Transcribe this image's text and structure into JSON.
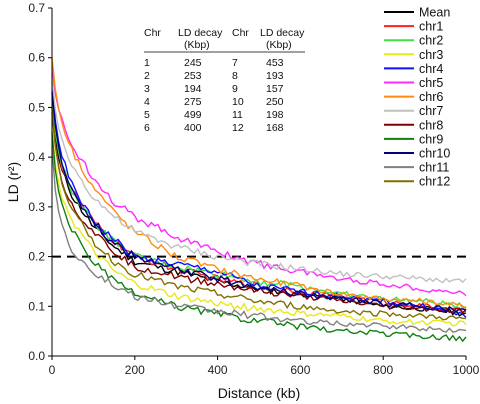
{
  "chart_data": {
    "type": "line",
    "xlabel": "Distance (kb)",
    "ylabel": "LD (r²)",
    "xlim": [
      0,
      1000
    ],
    "ylim": [
      0,
      0.7
    ],
    "xticks": [
      "0",
      "200",
      "400",
      "600",
      "800",
      "1000"
    ],
    "yticks": [
      "0.0",
      "0.1",
      "0.2",
      "0.3",
      "0.4",
      "0.5",
      "0.6",
      "0.7"
    ],
    "reference_line": {
      "y": 0.2,
      "style": "dashed"
    },
    "legend_position": "top-right",
    "series": [
      {
        "name": "Mean",
        "color": "#000000",
        "x": [
          0,
          5,
          20,
          50,
          100,
          150,
          200,
          300,
          400,
          500,
          600,
          700,
          800,
          900,
          1000
        ],
        "values": [
          0.5,
          0.45,
          0.38,
          0.32,
          0.26,
          0.22,
          0.19,
          0.17,
          0.15,
          0.135,
          0.125,
          0.115,
          0.1,
          0.095,
          0.085
        ]
      },
      {
        "name": "chr1",
        "color": "#ff2020",
        "x": [
          0,
          5,
          20,
          50,
          100,
          150,
          200,
          300,
          400,
          500,
          600,
          700,
          800,
          900,
          1000
        ],
        "values": [
          0.53,
          0.47,
          0.39,
          0.33,
          0.27,
          0.23,
          0.2,
          0.175,
          0.155,
          0.14,
          0.13,
          0.12,
          0.11,
          0.1,
          0.09
        ]
      },
      {
        "name": "chr2",
        "color": "#3fe23f",
        "x": [
          0,
          5,
          20,
          50,
          100,
          150,
          200,
          300,
          400,
          500,
          600,
          700,
          800,
          900,
          1000
        ],
        "values": [
          0.52,
          0.47,
          0.39,
          0.33,
          0.27,
          0.23,
          0.2,
          0.18,
          0.165,
          0.15,
          0.14,
          0.125,
          0.115,
          0.11,
          0.1
        ]
      },
      {
        "name": "chr3",
        "color": "#e8e81a",
        "x": [
          0,
          5,
          20,
          50,
          100,
          150,
          200,
          300,
          400,
          500,
          600,
          700,
          800,
          900,
          1000
        ],
        "values": [
          0.46,
          0.4,
          0.33,
          0.27,
          0.21,
          0.17,
          0.145,
          0.12,
          0.105,
          0.095,
          0.085,
          0.08,
          0.07,
          0.068,
          0.065
        ]
      },
      {
        "name": "chr4",
        "color": "#1010ff",
        "x": [
          0,
          5,
          20,
          50,
          100,
          150,
          200,
          300,
          400,
          500,
          600,
          700,
          800,
          900,
          1000
        ],
        "values": [
          0.55,
          0.49,
          0.41,
          0.34,
          0.27,
          0.235,
          0.2,
          0.185,
          0.17,
          0.14,
          0.13,
          0.12,
          0.11,
          0.1,
          0.08
        ]
      },
      {
        "name": "chr5",
        "color": "#ff2aff",
        "x": [
          0,
          5,
          20,
          50,
          100,
          150,
          200,
          300,
          400,
          500,
          600,
          700,
          800,
          900,
          1000
        ],
        "values": [
          0.58,
          0.54,
          0.48,
          0.42,
          0.36,
          0.31,
          0.28,
          0.24,
          0.21,
          0.185,
          0.17,
          0.155,
          0.145,
          0.135,
          0.125
        ]
      },
      {
        "name": "chr6",
        "color": "#ff8c10",
        "x": [
          0,
          5,
          20,
          50,
          100,
          150,
          200,
          300,
          400,
          500,
          600,
          700,
          800,
          900,
          1000
        ],
        "values": [
          0.6,
          0.55,
          0.48,
          0.41,
          0.34,
          0.29,
          0.25,
          0.2,
          0.175,
          0.155,
          0.14,
          0.125,
          0.115,
          0.11,
          0.1
        ]
      },
      {
        "name": "chr7",
        "color": "#c0c0c0",
        "x": [
          0,
          5,
          20,
          50,
          100,
          150,
          200,
          300,
          400,
          500,
          600,
          700,
          800,
          900,
          1000
        ],
        "values": [
          0.56,
          0.51,
          0.44,
          0.38,
          0.32,
          0.28,
          0.25,
          0.22,
          0.2,
          0.185,
          0.175,
          0.165,
          0.16,
          0.155,
          0.15
        ]
      },
      {
        "name": "chr8",
        "color": "#800000",
        "x": [
          0,
          5,
          20,
          50,
          100,
          150,
          200,
          300,
          400,
          500,
          600,
          700,
          800,
          900,
          1000
        ],
        "values": [
          0.49,
          0.44,
          0.36,
          0.3,
          0.25,
          0.21,
          0.18,
          0.16,
          0.145,
          0.13,
          0.12,
          0.11,
          0.1,
          0.095,
          0.09
        ]
      },
      {
        "name": "chr9",
        "color": "#0f800f",
        "x": [
          0,
          5,
          20,
          50,
          100,
          150,
          200,
          300,
          400,
          500,
          600,
          700,
          800,
          900,
          1000
        ],
        "values": [
          0.45,
          0.39,
          0.31,
          0.25,
          0.19,
          0.15,
          0.125,
          0.1,
          0.085,
          0.07,
          0.06,
          0.05,
          0.045,
          0.04,
          0.035
        ]
      },
      {
        "name": "chr10",
        "color": "#000080",
        "x": [
          0,
          5,
          20,
          50,
          100,
          150,
          200,
          300,
          400,
          500,
          600,
          700,
          800,
          900,
          1000
        ],
        "values": [
          0.53,
          0.48,
          0.4,
          0.33,
          0.27,
          0.225,
          0.2,
          0.175,
          0.155,
          0.14,
          0.125,
          0.115,
          0.105,
          0.1,
          0.09
        ]
      },
      {
        "name": "chr11",
        "color": "#808080",
        "x": [
          0,
          5,
          20,
          50,
          100,
          150,
          200,
          300,
          400,
          500,
          600,
          700,
          800,
          900,
          1000
        ],
        "values": [
          0.42,
          0.35,
          0.27,
          0.21,
          0.17,
          0.14,
          0.12,
          0.1,
          0.09,
          0.08,
          0.07,
          0.065,
          0.06,
          0.055,
          0.05
        ]
      },
      {
        "name": "chr12",
        "color": "#807000",
        "x": [
          0,
          5,
          20,
          50,
          100,
          150,
          200,
          300,
          400,
          500,
          600,
          700,
          800,
          900,
          1000
        ],
        "values": [
          0.5,
          0.44,
          0.36,
          0.29,
          0.23,
          0.19,
          0.165,
          0.14,
          0.125,
          0.11,
          0.1,
          0.09,
          0.085,
          0.08,
          0.075
        ]
      }
    ],
    "table": {
      "headers": [
        "Chr",
        "LD decay",
        "Chr",
        "LD decay"
      ],
      "subheaders": [
        "",
        "(Kbp)",
        "",
        "(Kbp)"
      ],
      "rows": [
        [
          "1",
          "245",
          "7",
          "453"
        ],
        [
          "2",
          "253",
          "8",
          "193"
        ],
        [
          "3",
          "194",
          "9",
          "157"
        ],
        [
          "4",
          "275",
          "10",
          "250"
        ],
        [
          "5",
          "499",
          "11",
          "198"
        ],
        [
          "6",
          "400",
          "12",
          "168"
        ]
      ]
    }
  }
}
